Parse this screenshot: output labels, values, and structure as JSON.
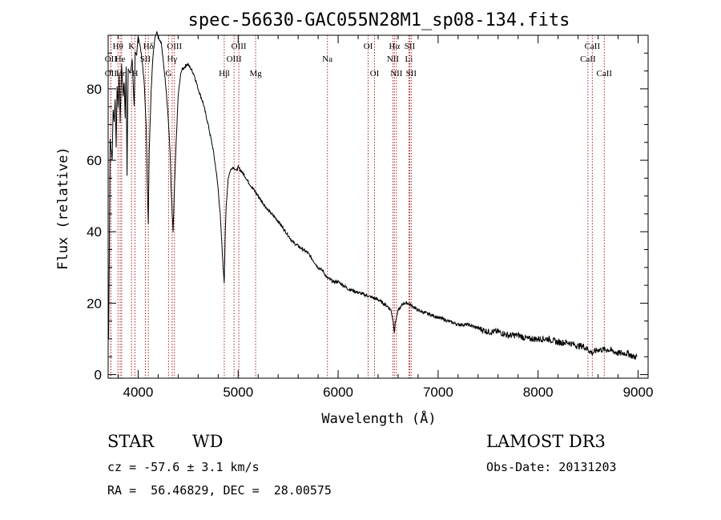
{
  "chart_data": {
    "type": "line",
    "title": "spec-56630-GAC055N28M1_sp08-134.fits",
    "xlabel": "Wavelength (Å)",
    "ylabel": "Flux (relative)",
    "xlim": [
      3700,
      9100
    ],
    "ylim": [
      -1,
      95
    ],
    "xticks": [
      4000,
      5000,
      6000,
      7000,
      8000,
      9000
    ],
    "yticks": [
      0,
      20,
      40,
      60,
      80
    ],
    "series": [
      {
        "name": "flux",
        "x": [
          3705,
          3720,
          3740,
          3750,
          3760,
          3770,
          3780,
          3790,
          3800,
          3810,
          3820,
          3835,
          3850,
          3860,
          3870,
          3880,
          3889,
          3900,
          3920,
          3940,
          3960,
          3970,
          3985,
          4000,
          4020,
          4040,
          4060,
          4080,
          4090,
          4101,
          4110,
          4130,
          4150,
          4170,
          4190,
          4210,
          4230,
          4250,
          4280,
          4300,
          4320,
          4330,
          4340,
          4350,
          4360,
          4380,
          4400,
          4430,
          4460,
          4490,
          4520,
          4560,
          4600,
          4650,
          4700,
          4750,
          4780,
          4800,
          4820,
          4840,
          4850,
          4861,
          4870,
          4880,
          4900,
          4920,
          4940,
          4960,
          4980,
          5000,
          5030,
          5060,
          5100,
          5150,
          5200,
          5250,
          5300,
          5400,
          5500,
          5550,
          5600,
          5650,
          5700,
          5750,
          5800,
          5850,
          5890,
          5900,
          5950,
          6000,
          6100,
          6200,
          6300,
          6400,
          6450,
          6500,
          6530,
          6550,
          6563,
          6575,
          6600,
          6630,
          6650,
          6680,
          6700,
          6750,
          6800,
          6900,
          7000,
          7100,
          7200,
          7300,
          7400,
          7500,
          7600,
          7700,
          7800,
          7900,
          8000,
          8100,
          8200,
          8300,
          8400,
          8450,
          8500,
          8542,
          8600,
          8700,
          8800,
          8900,
          8950,
          8990
        ],
        "y": [
          10,
          66,
          60,
          74,
          71,
          77,
          64,
          81,
          75,
          84,
          70,
          87,
          78,
          82,
          72,
          86,
          56,
          86,
          84,
          88,
          75,
          90,
          89,
          95,
          92,
          88,
          82,
          70,
          55,
          42,
          62,
          80,
          90,
          95,
          96,
          94,
          93,
          88,
          80,
          72,
          62,
          52,
          45,
          40,
          50,
          65,
          78,
          85,
          86,
          87,
          86,
          84,
          80,
          76,
          70,
          63,
          57,
          52,
          45,
          35,
          30,
          26,
          38,
          47,
          55,
          57,
          58,
          58,
          57,
          58,
          57,
          56,
          54,
          52,
          50,
          48,
          46,
          43,
          39,
          37,
          36,
          35,
          34,
          32,
          30,
          29,
          27,
          27,
          26,
          26,
          24,
          23,
          22,
          21,
          20,
          19,
          18,
          15,
          12,
          15,
          18,
          19,
          20,
          20,
          20,
          19,
          18,
          17,
          16,
          15,
          14,
          14,
          13,
          12,
          12,
          11,
          11,
          10,
          10,
          10,
          9,
          9,
          8,
          8,
          7,
          6,
          7,
          7,
          6,
          6,
          5,
          5
        ]
      }
    ],
    "spectral_lines": [
      {
        "label": "Hθ",
        "x": 3798,
        "row": 0
      },
      {
        "label": "OII",
        "x": 3727,
        "row": 1
      },
      {
        "label": "OII",
        "x": 3727,
        "row": 2
      },
      {
        "label": "He",
        "x": 3820,
        "row": 1
      },
      {
        "label": "Hη",
        "x": 3835,
        "row": 2
      },
      {
        "label": "K",
        "x": 3934,
        "row": 0
      },
      {
        "label": "H",
        "x": 3968,
        "row": 2
      },
      {
        "label": "SII",
        "x": 4072,
        "row": 1
      },
      {
        "label": "Hδ",
        "x": 4102,
        "row": 0
      },
      {
        "label": "OIII",
        "x": 4363,
        "row": 0
      },
      {
        "label": "Hγ",
        "x": 4340,
        "row": 1
      },
      {
        "label": "G",
        "x": 4304,
        "row": 2
      },
      {
        "label": "Hβ",
        "x": 4861,
        "row": 2
      },
      {
        "label": "OIII",
        "x": 5007,
        "row": 0
      },
      {
        "label": "OIII",
        "x": 4959,
        "row": 1
      },
      {
        "label": "Mg",
        "x": 5175,
        "row": 2
      },
      {
        "label": "Na",
        "x": 5893,
        "row": 1
      },
      {
        "label": "OI",
        "x": 6300,
        "row": 0
      },
      {
        "label": "OI",
        "x": 6364,
        "row": 2
      },
      {
        "label": "Hα",
        "x": 6563,
        "row": 0
      },
      {
        "label": "SII",
        "x": 6716,
        "row": 0
      },
      {
        "label": "NII",
        "x": 6548,
        "row": 1
      },
      {
        "label": "Li",
        "x": 6708,
        "row": 1
      },
      {
        "label": "NII",
        "x": 6583,
        "row": 2
      },
      {
        "label": "SII",
        "x": 6731,
        "row": 2
      },
      {
        "label": "CaII",
        "x": 8542,
        "row": 0
      },
      {
        "label": "CaII",
        "x": 8498,
        "row": 1
      },
      {
        "label": "CaII",
        "x": 8662,
        "row": 2
      }
    ]
  },
  "info": {
    "object_class": "STAR",
    "subclass": "WD",
    "survey": "LAMOST DR3",
    "cz": "cz = -57.6 ± 3.1 km/s",
    "obs_date": "Obs-Date: 20131203",
    "radec": "RA =  56.46829, DEC =  28.00575"
  },
  "colors": {
    "line_marker": "#b22222",
    "spectrum": "#000000"
  }
}
